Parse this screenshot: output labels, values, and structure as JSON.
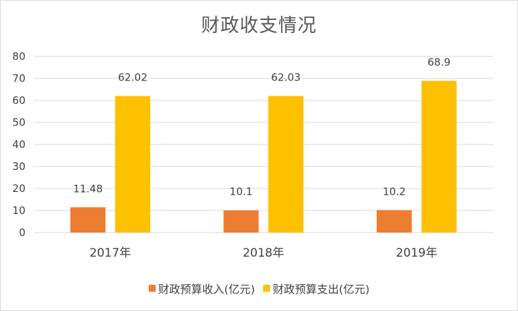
{
  "chart_data": {
    "type": "bar",
    "title": "财政收支情况",
    "categories": [
      "2017年",
      "2018年",
      "2019年"
    ],
    "series": [
      {
        "name": "财政预算收入(亿元)",
        "values": [
          11.48,
          10.1,
          10.2
        ],
        "labels": [
          "11.48",
          "10.1",
          "10.2"
        ],
        "color": "#ED7D31"
      },
      {
        "name": "财政预算支出(亿元)",
        "values": [
          62.02,
          62.03,
          68.9
        ],
        "labels": [
          "62.02",
          "62.03",
          "68.9"
        ],
        "color": "#FFC000"
      }
    ],
    "yticks": [
      "0",
      "10",
      "20",
      "30",
      "40",
      "50",
      "60",
      "70",
      "80"
    ],
    "ylim": [
      0,
      80
    ],
    "grid": true,
    "legend_position": "bottom"
  }
}
